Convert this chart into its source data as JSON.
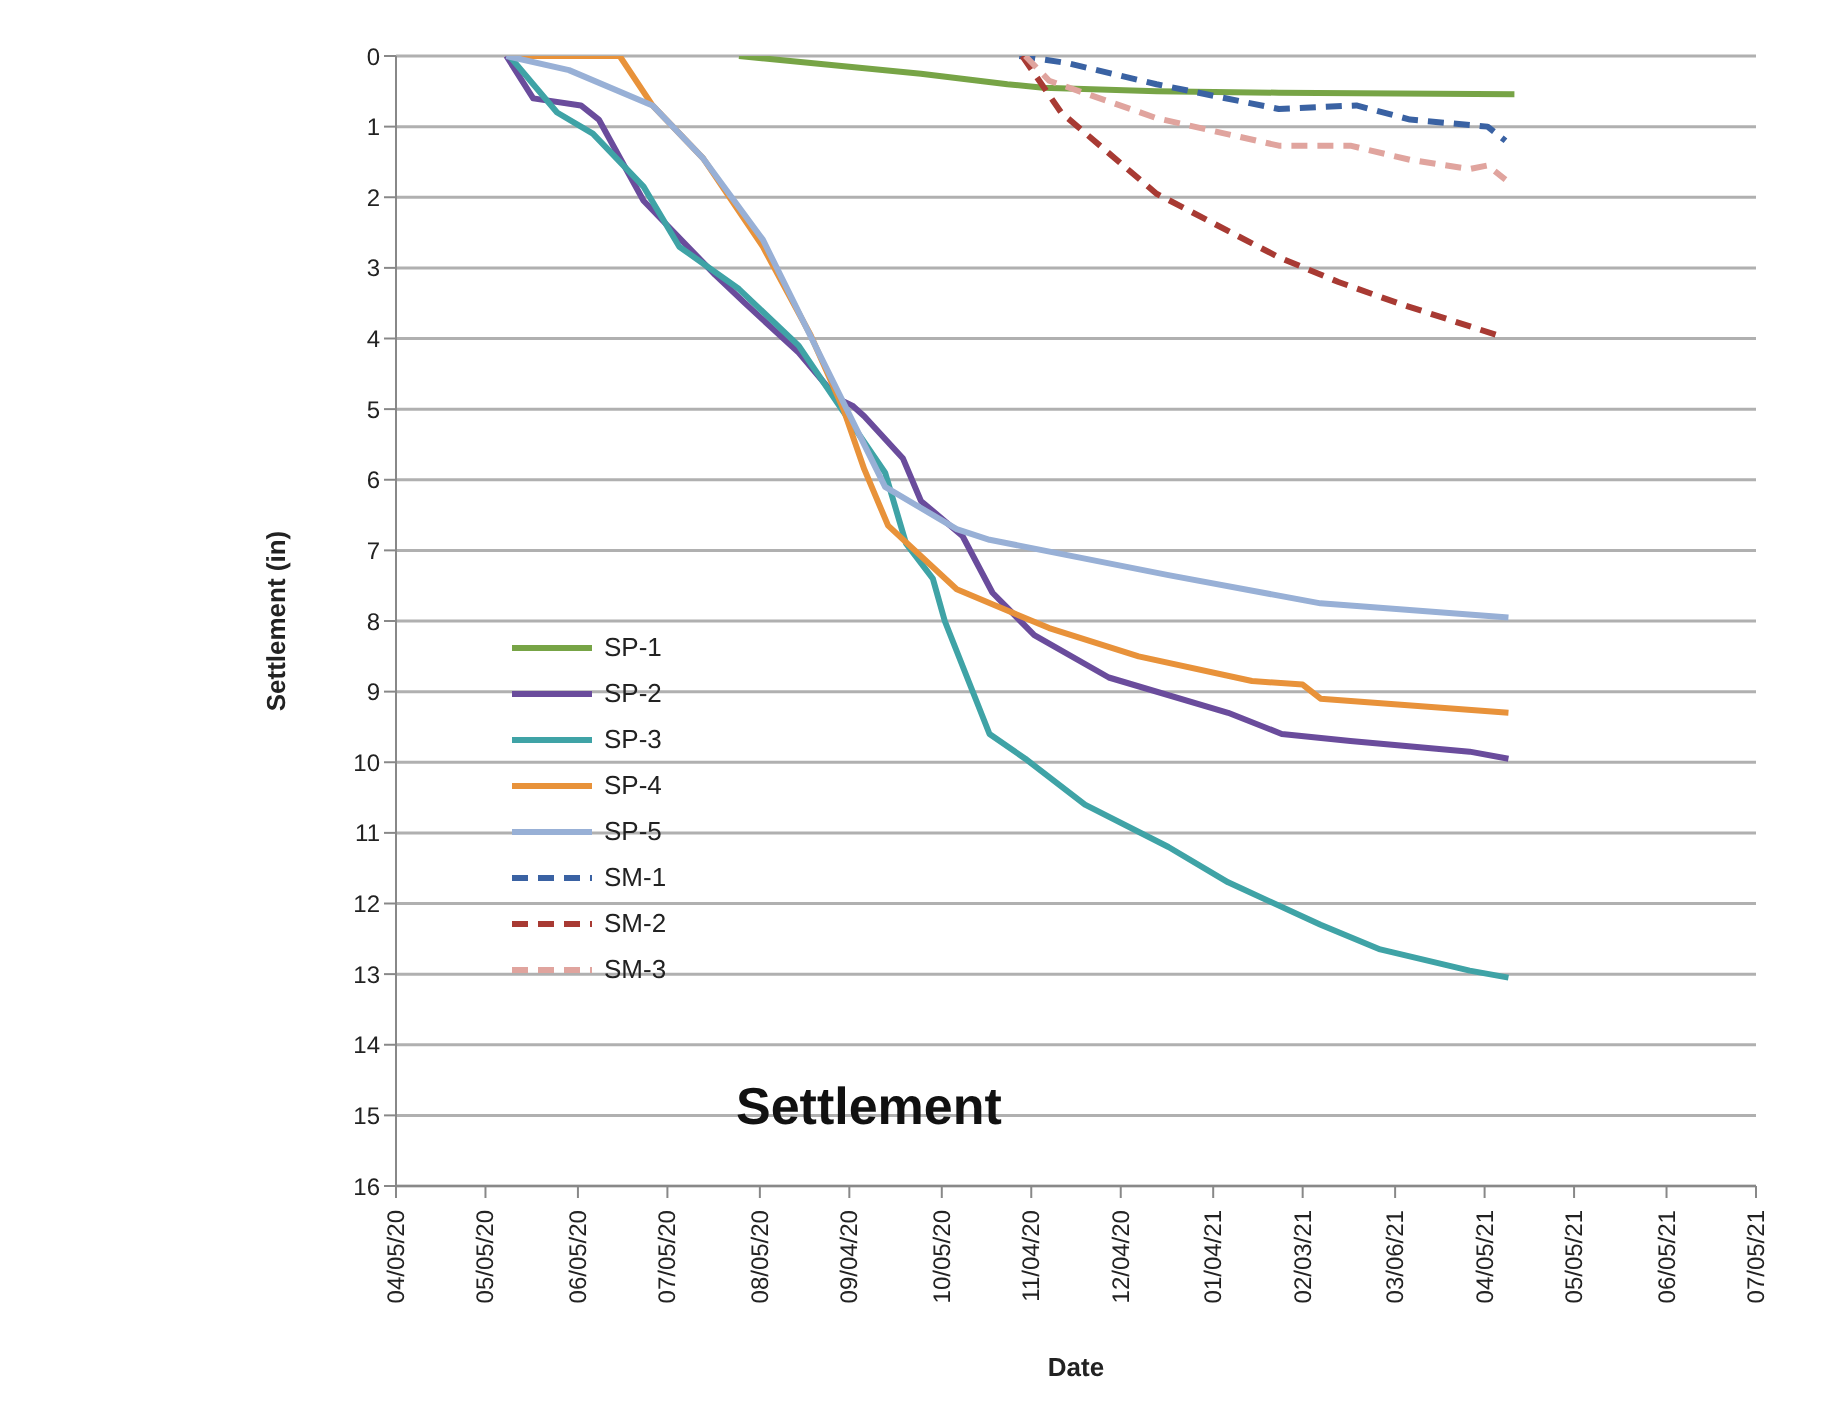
{
  "chart_data": {
    "type": "line",
    "title": "Settlement",
    "xlabel": "Date",
    "ylabel": "Settlement (in)",
    "xlim": [
      "2020-04-05",
      "2021-07-05"
    ],
    "xticks": [
      {
        "value": "2020-04-05",
        "label": "04/05/20"
      },
      {
        "value": "2020-05-05",
        "label": "05/05/20"
      },
      {
        "value": "2020-06-05",
        "label": "06/05/20"
      },
      {
        "value": "2020-07-05",
        "label": "07/05/20"
      },
      {
        "value": "2020-08-05",
        "label": "08/05/20"
      },
      {
        "value": "2020-09-04",
        "label": "09/04/20"
      },
      {
        "value": "2020-10-05",
        "label": "10/05/20"
      },
      {
        "value": "2020-11-04",
        "label": "11/04/20"
      },
      {
        "value": "2020-12-04",
        "label": "12/04/20"
      },
      {
        "value": "2021-01-04",
        "label": "01/04/21"
      },
      {
        "value": "2021-02-03",
        "label": "02/03/21"
      },
      {
        "value": "2021-03-06",
        "label": "03/06/21"
      },
      {
        "value": "2021-04-05",
        "label": "04/05/21"
      },
      {
        "value": "2021-05-05",
        "label": "05/05/21"
      },
      {
        "value": "2021-06-05",
        "label": "06/05/21"
      },
      {
        "value": "2021-07-05",
        "label": "07/05/21"
      }
    ],
    "ylim": [
      16,
      0
    ],
    "yticks": [
      0,
      1,
      2,
      3,
      4,
      5,
      6,
      7,
      8,
      9,
      10,
      11,
      12,
      13,
      14,
      15,
      16
    ],
    "grid": "y",
    "legend": "left",
    "marker": "none",
    "series": [
      {
        "name": "SP-1",
        "color": "#77a446",
        "line_style": "solid",
        "x": [
          "2020-07-29",
          "2020-09-28",
          "2020-10-27",
          "2020-11-08",
          "2020-12-16",
          "2021-01-26",
          "2021-04-15"
        ],
        "values": [
          0,
          0.25,
          0.4,
          0.45,
          0.5,
          0.52,
          0.54
        ]
      },
      {
        "name": "SP-2",
        "color": "#6a4c9c",
        "line_style": "solid",
        "x": [
          "2020-05-12",
          "2020-05-21",
          "2020-06-06",
          "2020-06-12",
          "2020-06-27",
          "2020-07-05",
          "2020-07-21",
          "2020-07-31",
          "2020-08-18",
          "2020-08-31",
          "2020-09-05",
          "2020-09-09",
          "2020-09-22",
          "2020-09-28",
          "2020-10-12",
          "2020-10-22",
          "2020-11-05",
          "2020-11-30",
          "2021-01-09",
          "2021-01-27",
          "2021-02-19",
          "2021-03-31",
          "2021-04-13"
        ],
        "values": [
          0,
          0.6,
          0.7,
          0.9,
          2.05,
          2.4,
          3.1,
          3.5,
          4.2,
          4.85,
          4.95,
          5.1,
          5.7,
          6.3,
          6.8,
          7.6,
          8.2,
          8.8,
          9.3,
          9.6,
          9.7,
          9.85,
          9.95
        ]
      },
      {
        "name": "SP-3",
        "color": "#3fa3a6",
        "line_style": "solid",
        "x": [
          "2020-05-13",
          "2020-05-29",
          "2020-06-10",
          "2020-06-27",
          "2020-07-09",
          "2020-07-29",
          "2020-08-18",
          "2020-08-30",
          "2020-09-16",
          "2020-09-23",
          "2020-10-02",
          "2020-10-06",
          "2020-10-21",
          "2020-11-02",
          "2020-11-22",
          "2020-12-20",
          "2021-01-09",
          "2021-02-09",
          "2021-03-01",
          "2021-03-31",
          "2021-04-13"
        ],
        "values": [
          0,
          0.8,
          1.1,
          1.85,
          2.7,
          3.3,
          4.1,
          4.85,
          5.9,
          6.9,
          7.4,
          8,
          9.6,
          9.95,
          10.6,
          11.2,
          11.7,
          12.3,
          12.65,
          12.95,
          13.05
        ]
      },
      {
        "name": "SP-4",
        "color": "#e8923a",
        "line_style": "solid",
        "x": [
          "2020-05-17",
          "2020-06-19",
          "2020-06-30",
          "2020-07-17",
          "2020-08-06",
          "2020-08-22",
          "2020-09-02",
          "2020-09-09",
          "2020-09-17",
          "2020-10-10",
          "2020-11-10",
          "2020-12-10",
          "2021-01-17",
          "2021-02-03",
          "2021-02-09",
          "2021-04-13"
        ],
        "values": [
          0,
          0,
          0.7,
          1.45,
          2.7,
          3.95,
          5,
          5.85,
          6.65,
          7.55,
          8.1,
          8.5,
          8.85,
          8.9,
          9.1,
          9.3
        ]
      },
      {
        "name": "SP-5",
        "color": "#98b0d6",
        "line_style": "solid",
        "x": [
          "2020-05-12",
          "2020-06-02",
          "2020-06-30",
          "2020-07-17",
          "2020-08-06",
          "2020-08-30",
          "2020-09-16",
          "2020-10-10",
          "2020-10-21",
          "2020-12-20",
          "2021-02-09",
          "2021-04-13"
        ],
        "values": [
          0,
          0.2,
          0.7,
          1.45,
          2.6,
          4.65,
          6.1,
          6.7,
          6.85,
          7.35,
          7.75,
          7.95
        ]
      },
      {
        "name": "SM-1",
        "color": "#3a62a3",
        "line_style": "dashed",
        "x": [
          "2020-10-31",
          "2020-11-16",
          "2020-12-16",
          "2021-01-26",
          "2021-02-21",
          "2021-03-11",
          "2021-04-06",
          "2021-04-12"
        ],
        "values": [
          0,
          0.1,
          0.4,
          0.75,
          0.7,
          0.9,
          1,
          1.2
        ]
      },
      {
        "name": "SM-2",
        "color": "#a83a33",
        "line_style": "dashed",
        "x": [
          "2020-11-01",
          "2020-11-14",
          "2020-12-16",
          "2021-01-26",
          "2021-02-15",
          "2021-03-07",
          "2021-04-09"
        ],
        "values": [
          0,
          0.8,
          1.95,
          2.85,
          3.2,
          3.5,
          3.95
        ]
      },
      {
        "name": "SM-3",
        "color": "#e0a49e",
        "line_style": "dashed",
        "x": [
          "2020-11-02",
          "2020-11-10",
          "2020-12-16",
          "2021-01-26",
          "2021-02-19",
          "2021-03-11",
          "2021-03-31",
          "2021-04-06",
          "2021-04-12"
        ],
        "values": [
          0,
          0.35,
          0.88,
          1.27,
          1.27,
          1.47,
          1.6,
          1.55,
          1.75
        ]
      }
    ]
  }
}
